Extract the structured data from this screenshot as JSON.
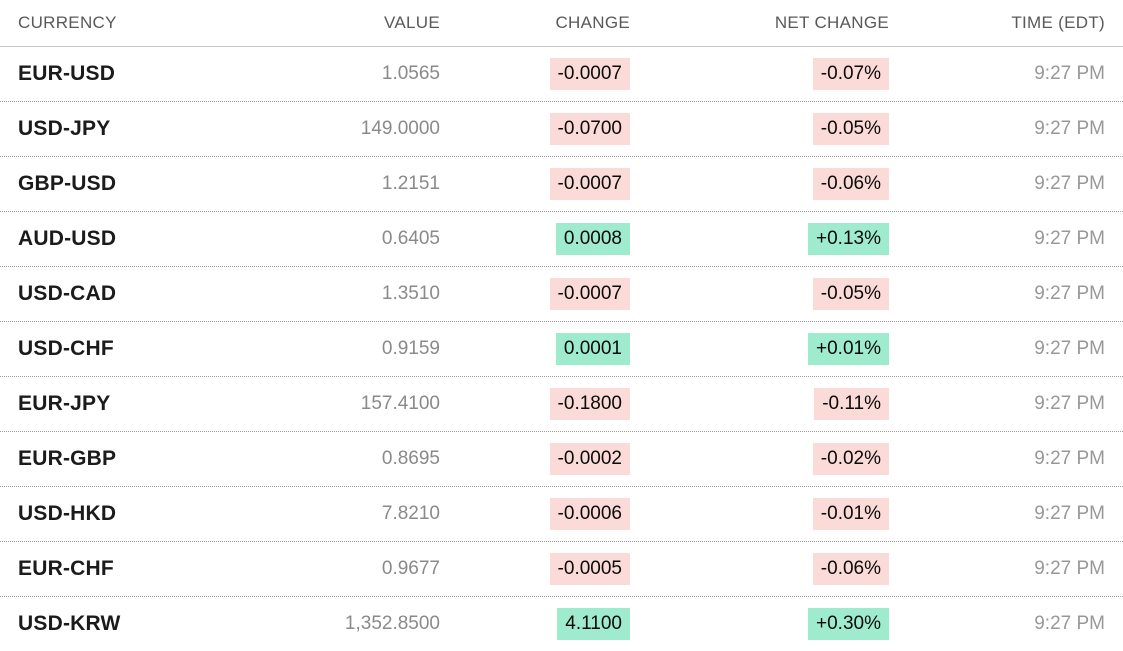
{
  "table": {
    "columns": [
      {
        "label": "CURRENCY"
      },
      {
        "label": "VALUE"
      },
      {
        "label": "CHANGE"
      },
      {
        "label": "NET CHANGE"
      },
      {
        "label": "TIME (EDT)"
      }
    ],
    "rows": [
      {
        "currency": "EUR-USD",
        "value": "1.0565",
        "change": "-0.0007",
        "net_change": "-0.07%",
        "time": "9:27 PM",
        "direction": "down"
      },
      {
        "currency": "USD-JPY",
        "value": "149.0000",
        "change": "-0.0700",
        "net_change": "-0.05%",
        "time": "9:27 PM",
        "direction": "down"
      },
      {
        "currency": "GBP-USD",
        "value": "1.2151",
        "change": "-0.0007",
        "net_change": "-0.06%",
        "time": "9:27 PM",
        "direction": "down"
      },
      {
        "currency": "AUD-USD",
        "value": "0.6405",
        "change": "0.0008",
        "net_change": "+0.13%",
        "time": "9:27 PM",
        "direction": "up"
      },
      {
        "currency": "USD-CAD",
        "value": "1.3510",
        "change": "-0.0007",
        "net_change": "-0.05%",
        "time": "9:27 PM",
        "direction": "down"
      },
      {
        "currency": "USD-CHF",
        "value": "0.9159",
        "change": "0.0001",
        "net_change": "+0.01%",
        "time": "9:27 PM",
        "direction": "up"
      },
      {
        "currency": "EUR-JPY",
        "value": "157.4100",
        "change": "-0.1800",
        "net_change": "-0.11%",
        "time": "9:27 PM",
        "direction": "down"
      },
      {
        "currency": "EUR-GBP",
        "value": "0.8695",
        "change": "-0.0002",
        "net_change": "-0.02%",
        "time": "9:27 PM",
        "direction": "down"
      },
      {
        "currency": "USD-HKD",
        "value": "7.8210",
        "change": "-0.0006",
        "net_change": "-0.01%",
        "time": "9:27 PM",
        "direction": "down"
      },
      {
        "currency": "EUR-CHF",
        "value": "0.9677",
        "change": "-0.0005",
        "net_change": "-0.06%",
        "time": "9:27 PM",
        "direction": "down"
      },
      {
        "currency": "USD-KRW",
        "value": "1,352.8500",
        "change": "4.1100",
        "net_change": "+0.30%",
        "time": "9:27 PM",
        "direction": "up"
      }
    ]
  },
  "colors": {
    "positive_badge_bg": "#9eeccd",
    "negative_badge_bg": "#fbdbd7",
    "header_text": "#58595b",
    "ticker_text": "#1b1b1b",
    "value_text": "#8a8a8a",
    "time_text": "#989898",
    "header_rule": "#c7c7c7",
    "row_rule_dotted": "#9d9d9d"
  }
}
